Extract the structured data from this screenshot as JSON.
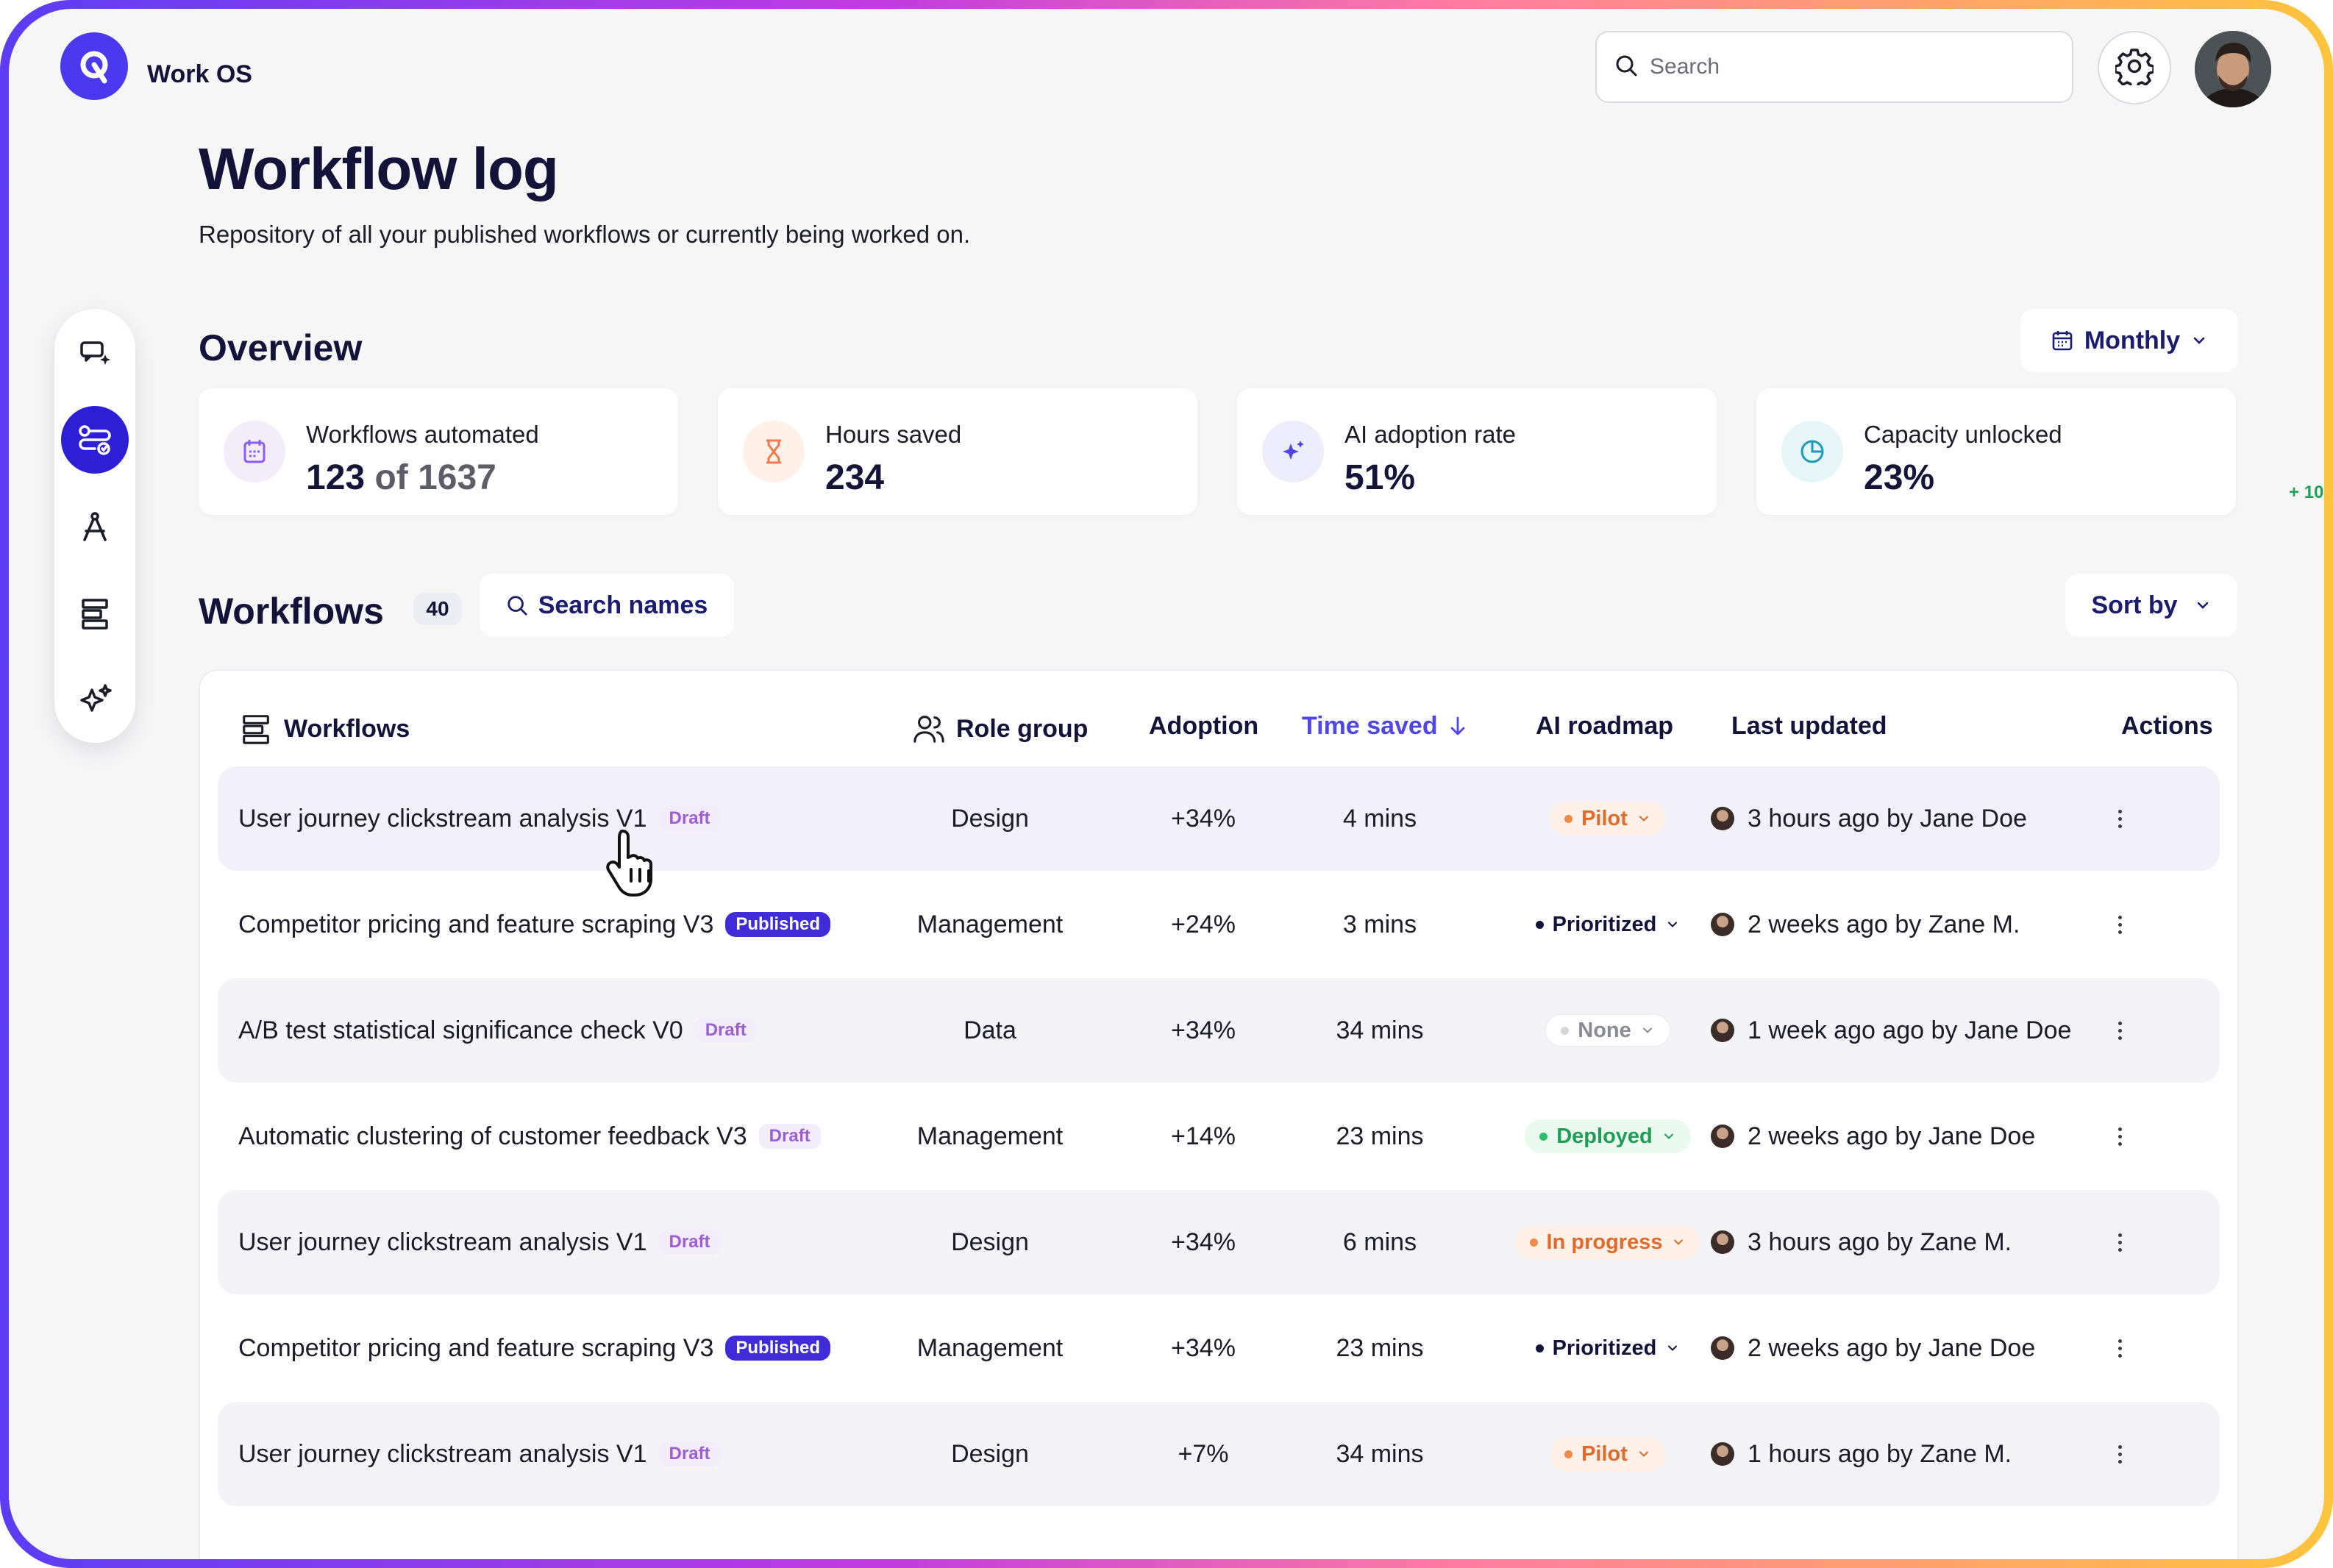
{
  "app": {
    "name": "Work OS"
  },
  "header": {
    "search_placeholder": "Search"
  },
  "page": {
    "title": "Workflow log",
    "subtitle": "Repository of all your published workflows or currently being worked on."
  },
  "overview": {
    "title": "Overview",
    "period_label": "Monthly",
    "stats": [
      {
        "label": "Workflows automated",
        "value": "123",
        "of_label": "of 1637",
        "icon": "calendar-icon",
        "color": "#8b5cf6"
      },
      {
        "label": "Hours saved",
        "value": "234",
        "icon": "hourglass-icon",
        "color": "#f07a4b"
      },
      {
        "label": "AI adoption rate",
        "value": "51%",
        "icon": "sparkle-icon",
        "color": "#4f46e5"
      },
      {
        "label": "Capacity unlocked",
        "value": "23%",
        "icon": "pie-chart-icon",
        "color": "#1b9bb8"
      }
    ],
    "edge_fragment": "+ 10"
  },
  "workflows": {
    "title": "Workflows",
    "count": "40",
    "search_names_label": "Search names",
    "sort_label": "Sort by",
    "columns": {
      "workflows": "Workflows",
      "role_group": "Role group",
      "adoption": "Adoption",
      "time_saved": "Time saved",
      "ai_roadmap": "AI roadmap",
      "last_updated": "Last updated",
      "actions": "Actions"
    },
    "rows": [
      {
        "name": "User journey clickstream analysis V1",
        "tag": "Draft",
        "role": "Design",
        "adoption": "+34%",
        "time": "4 mins",
        "status": "Pilot",
        "updated": "3 hours ago by Jane Doe"
      },
      {
        "name": "Competitor pricing and feature scraping V3",
        "tag": "Published",
        "role": "Management",
        "adoption": "+24%",
        "time": "3 mins",
        "status": "Prioritized",
        "updated": "2 weeks ago by Zane M."
      },
      {
        "name": "A/B test statistical significance check V0",
        "tag": "Draft",
        "role": "Data",
        "adoption": "+34%",
        "time": "34 mins",
        "status": "None",
        "updated": "1 week ago ago by Jane Doe"
      },
      {
        "name": "Automatic clustering of customer feedback V3",
        "tag": "Draft",
        "role": "Management",
        "adoption": "+14%",
        "time": "23 mins",
        "status": "Deployed",
        "updated": "2 weeks ago by Jane Doe"
      },
      {
        "name": "User journey clickstream analysis V1",
        "tag": "Draft",
        "role": "Design",
        "adoption": "+34%",
        "time": "6 mins",
        "status": "In progress",
        "updated": "3 hours ago by Zane M."
      },
      {
        "name": "Competitor pricing and feature scraping V3",
        "tag": "Published",
        "role": "Management",
        "adoption": "+34%",
        "time": "23 mins",
        "status": "Prioritized",
        "updated": "2 weeks ago by Jane Doe"
      },
      {
        "name": "User journey clickstream analysis V1",
        "tag": "Draft",
        "role": "Design",
        "adoption": "+7%",
        "time": "34 mins",
        "status": "Pilot",
        "updated": "1 hours ago by Zane M."
      }
    ]
  },
  "colors": {
    "accent": "#2d1fd6",
    "brand": "#4a39ef",
    "sort_active": "#4f46e5"
  }
}
